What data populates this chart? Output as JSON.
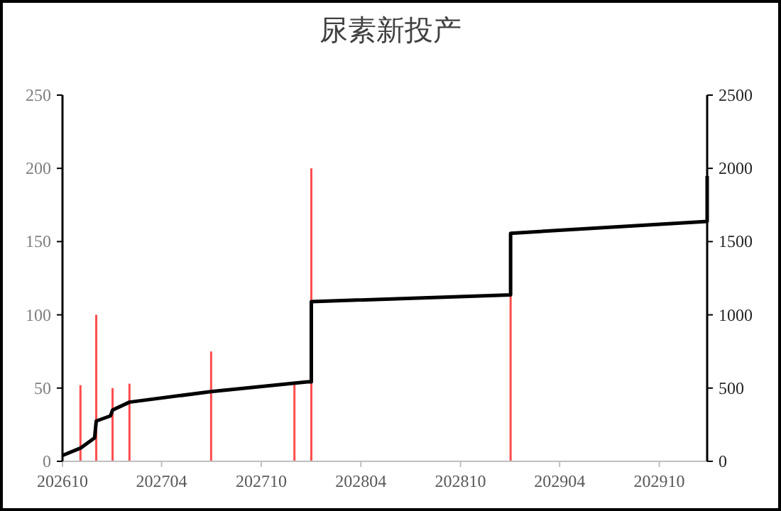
{
  "chart_data": {
    "type": "bar",
    "title": "尿素新投产",
    "xlim": [
      "2026-10-01",
      "2029-12-28"
    ],
    "xticks": [
      {
        "value": "2026-10-01",
        "label": "202610"
      },
      {
        "value": "2027-04-01",
        "label": "202704"
      },
      {
        "value": "2027-10-01",
        "label": "202710"
      },
      {
        "value": "2028-04-01",
        "label": "202804"
      },
      {
        "value": "2028-10-01",
        "label": "202810"
      },
      {
        "value": "2029-04-01",
        "label": "202904"
      },
      {
        "value": "2029-10-01",
        "label": "202910"
      }
    ],
    "ylim": [
      0,
      250
    ],
    "yticks": [
      0,
      50,
      100,
      150,
      200,
      250
    ],
    "y2lim": [
      0,
      2500
    ],
    "y2ticks": [
      0,
      500,
      1000,
      1500,
      2000,
      2500
    ],
    "series": [
      {
        "color": "#ff4d4d",
        "x": [
          "2026-11-03",
          "2026-12-02",
          "2027-01-01",
          "2027-02-01",
          "2027-07-01",
          "2027-12-01",
          "2028-01-01",
          "2029-01-01"
        ],
        "values": [
          52,
          100,
          50,
          53,
          75,
          53,
          200,
          113
        ]
      },
      {
        "type": "line",
        "axis": "y2",
        "color": "#000000",
        "x": [
          "2026-10-01",
          "2026-11-03",
          "2026-11-29",
          "2026-12-02",
          "2026-12-28",
          "2027-01-01",
          "2027-02-01",
          "2027-07-01",
          "2027-12-25",
          "2028-01-01",
          "2028-01-01",
          "2029-01-01",
          "2029-01-01",
          "2029-12-28",
          "2029-12-28"
        ],
        "values": [
          40,
          90,
          160,
          275,
          310,
          350,
          404,
          476,
          543,
          543,
          1090,
          1136,
          1557,
          1638,
          1948
        ]
      }
    ],
    "grid": false,
    "marker": "none",
    "line_style": "solid"
  }
}
